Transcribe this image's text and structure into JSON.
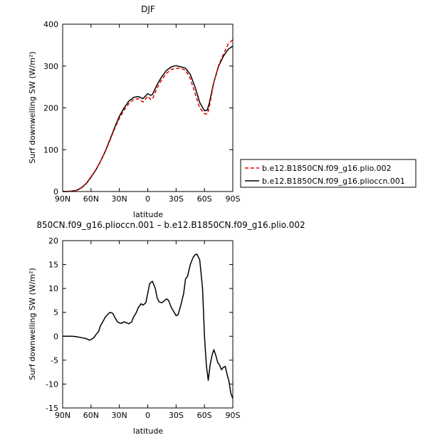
{
  "chart_data": [
    {
      "type": "line",
      "title": "DJF",
      "xlabel": "latitude",
      "ylabel": "Surf downwelling SW (W/m²)",
      "xlim": [
        90,
        -90
      ],
      "ylim": [
        0,
        400
      ],
      "x_ticks": [
        "90N",
        "60N",
        "30N",
        "0",
        "30S",
        "60S",
        "90S"
      ],
      "x_tick_values": [
        90,
        60,
        30,
        0,
        -30,
        -60,
        -90
      ],
      "y_ticks": [
        0,
        100,
        200,
        300,
        400
      ],
      "legend": {
        "placement": "right-outside",
        "entries": [
          {
            "label": "b.e12.B1850CN.f09_g16.plio.002",
            "color": "#e00000",
            "style": "dashed"
          },
          {
            "label": "b.e12.B1850CN.f09_g16.plioccn.001",
            "color": "#000000",
            "style": "solid"
          }
        ]
      },
      "series": [
        {
          "name": "b.e12.B1850CN.f09_g16.plio.002",
          "color": "#e00000",
          "dashed": true,
          "x": [
            90,
            85,
            80,
            75,
            70,
            65,
            60,
            55,
            50,
            45,
            40,
            35,
            30,
            25,
            20,
            15,
            10,
            5,
            0,
            -3,
            -5,
            -10,
            -15,
            -20,
            -25,
            -30,
            -35,
            -40,
            -45,
            -50,
            -55,
            -60,
            -63,
            -65,
            -70,
            -75,
            -80,
            -85,
            -90
          ],
          "y": [
            0,
            0,
            1,
            3,
            10,
            20,
            35,
            52,
            72,
            95,
            122,
            150,
            175,
            195,
            210,
            220,
            222,
            214,
            228,
            220,
            221,
            248,
            268,
            283,
            292,
            295,
            294,
            290,
            270,
            235,
            200,
            186,
            185,
            200,
            262,
            302,
            328,
            352,
            363
          ]
        },
        {
          "name": "b.e12.B1850CN.f09_g16.plioccn.001",
          "color": "#000000",
          "dashed": false,
          "x": [
            90,
            85,
            80,
            75,
            70,
            65,
            60,
            55,
            50,
            45,
            40,
            35,
            30,
            25,
            20,
            15,
            10,
            5,
            0,
            -3,
            -5,
            -10,
            -15,
            -20,
            -25,
            -30,
            -35,
            -40,
            -45,
            -50,
            -55,
            -60,
            -63,
            -65,
            -70,
            -75,
            -80,
            -85,
            -90
          ],
          "y": [
            0,
            0,
            1,
            3,
            9,
            19,
            34,
            51,
            72,
            96,
            124,
            153,
            180,
            200,
            216,
            225,
            227,
            222,
            234,
            230,
            232,
            256,
            275,
            290,
            298,
            301,
            298,
            295,
            280,
            250,
            213,
            193,
            195,
            210,
            262,
            300,
            323,
            340,
            348
          ]
        }
      ]
    },
    {
      "type": "line",
      "title": "850CN.f09_g16.plioccn.001 – b.e12.B1850CN.f09_g16.plio.002",
      "xlabel": "latitude",
      "ylabel": "Surf downwelling SW (W/m²)",
      "xlim": [
        90,
        -90
      ],
      "ylim": [
        -15,
        20
      ],
      "x_ticks": [
        "90N",
        "60N",
        "30N",
        "0",
        "30S",
        "60S",
        "90S"
      ],
      "x_tick_values": [
        90,
        60,
        30,
        0,
        -30,
        -60,
        -90
      ],
      "y_ticks": [
        -15,
        -10,
        -5,
        0,
        5,
        10,
        15,
        20
      ],
      "series": [
        {
          "color": "#000000",
          "x": [
            90,
            85,
            80,
            75,
            70,
            65,
            62,
            60,
            57,
            55,
            52,
            50,
            47,
            45,
            42,
            40,
            37,
            35,
            32,
            30,
            28,
            25,
            22,
            20,
            17,
            15,
            12,
            10,
            7,
            5,
            2,
            0,
            -2,
            -5,
            -8,
            -10,
            -12,
            -15,
            -18,
            -20,
            -22,
            -25,
            -28,
            -30,
            -32,
            -35,
            -38,
            -40,
            -42,
            -45,
            -48,
            -50,
            -52,
            -55,
            -58,
            -60,
            -62,
            -64,
            -66,
            -68,
            -70,
            -72,
            -74,
            -76,
            -78,
            -80,
            -82,
            -84,
            -86,
            -88,
            -90
          ],
          "y": [
            0,
            0,
            0,
            -0.1,
            -0.3,
            -0.5,
            -0.8,
            -0.7,
            -0.3,
            0.3,
            1.0,
            2.2,
            3.2,
            4.0,
            4.6,
            5.0,
            4.8,
            4.0,
            3.0,
            2.8,
            2.7,
            3.0,
            2.8,
            2.6,
            3.0,
            4.0,
            5.0,
            6.0,
            6.8,
            6.5,
            7.0,
            9.0,
            11.0,
            11.5,
            10.0,
            8.0,
            7.2,
            7.0,
            7.5,
            7.8,
            7.5,
            6.0,
            5.0,
            4.3,
            4.5,
            6.5,
            9.0,
            12.0,
            12.5,
            15.0,
            16.5,
            17.0,
            17.2,
            16.0,
            10.0,
            0.0,
            -6.0,
            -9.2,
            -6.0,
            -4.0,
            -2.8,
            -4.0,
            -5.5,
            -6.0,
            -7.0,
            -6.5,
            -6.3,
            -8.0,
            -9.5,
            -12.0,
            -13.0
          ]
        }
      ]
    }
  ]
}
